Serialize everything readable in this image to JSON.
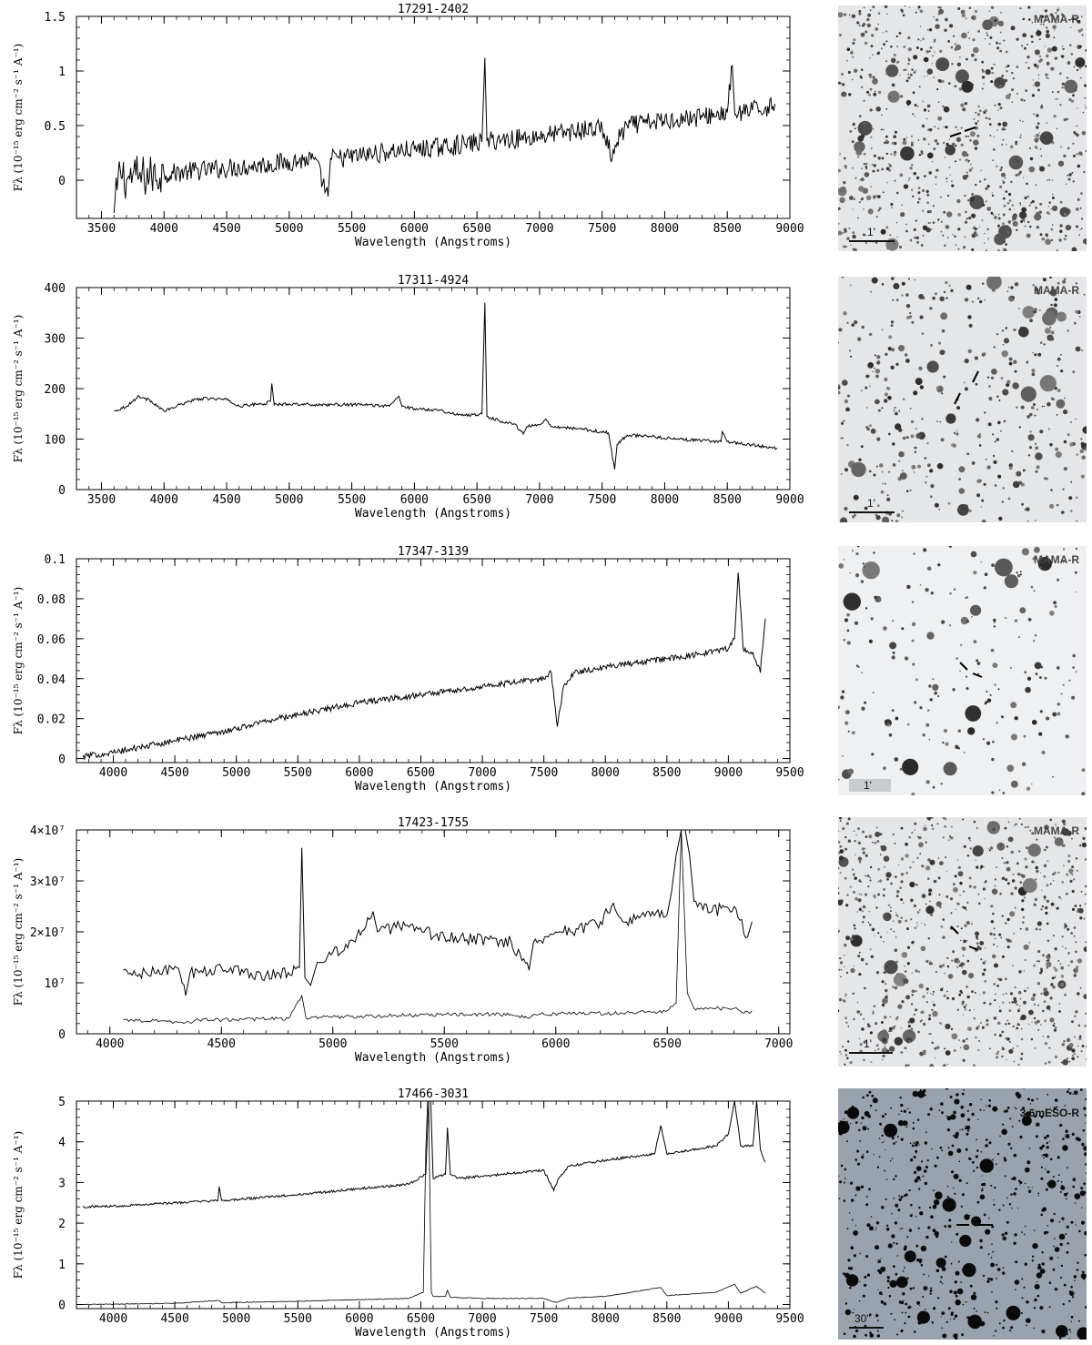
{
  "chart_data": [
    {
      "type": "line",
      "title": "17291-2402",
      "xlabel": "Wavelength (Angstroms)",
      "ylabel": "Fλ (10⁻¹⁵ erg cm⁻² s⁻¹ A⁻¹)",
      "xlim": [
        3300,
        9000
      ],
      "ylim": [
        -0.35,
        1.5
      ],
      "xticks": [
        3500,
        4000,
        4500,
        5000,
        5500,
        6000,
        6500,
        7000,
        7500,
        8000,
        8500,
        9000
      ],
      "yticks": [
        0,
        0.5,
        1,
        1.5
      ],
      "ytick_labels": [
        "0",
        "0.5",
        "1",
        "1.5"
      ],
      "series": [
        {
          "x": [
            3600,
            3650,
            3700,
            3750,
            3800,
            3900,
            4000,
            4200,
            4400,
            4600,
            4800,
            5000,
            5200,
            5310,
            5330,
            5400,
            5600,
            5800,
            6000,
            6200,
            6400,
            6540,
            6563,
            6580,
            6700,
            6900,
            7100,
            7300,
            7500,
            7580,
            7620,
            7700,
            7900,
            8100,
            8300,
            8500,
            8540,
            8560,
            8700,
            8800,
            8880
          ],
          "y": [
            -0.3,
            0.1,
            0.0,
            0.05,
            0.03,
            0.04,
            0.06,
            0.08,
            0.1,
            0.12,
            0.14,
            0.17,
            0.19,
            -0.15,
            0.2,
            0.2,
            0.23,
            0.26,
            0.28,
            0.3,
            0.33,
            0.35,
            1.12,
            0.36,
            0.37,
            0.39,
            0.42,
            0.45,
            0.48,
            0.2,
            0.35,
            0.5,
            0.53,
            0.56,
            0.58,
            0.62,
            1.05,
            0.6,
            0.64,
            0.66,
            0.7
          ]
        }
      ]
    },
    {
      "type": "line",
      "title": "17311-4924",
      "xlabel": "Wavelength (Angstroms)",
      "ylabel": "Fλ (10⁻¹⁵ erg cm⁻² s⁻¹ A⁻¹)",
      "xlim": [
        3300,
        9000
      ],
      "ylim": [
        0,
        400
      ],
      "xticks": [
        3500,
        4000,
        4500,
        5000,
        5500,
        6000,
        6500,
        7000,
        7500,
        8000,
        8500,
        9000
      ],
      "yticks": [
        0,
        100,
        200,
        300,
        400
      ],
      "ytick_labels": [
        "0",
        "100",
        "200",
        "300",
        "400"
      ],
      "series": [
        {
          "x": [
            3600,
            3700,
            3800,
            3900,
            4000,
            4100,
            4200,
            4300,
            4400,
            4500,
            4600,
            4700,
            4800,
            4850,
            4861,
            4880,
            5000,
            5200,
            5400,
            5600,
            5800,
            5876,
            5900,
            6000,
            6200,
            6300,
            6400,
            6500,
            6540,
            6563,
            6580,
            6700,
            6800,
            6870,
            6900,
            7000,
            7050,
            7100,
            7200,
            7400,
            7550,
            7600,
            7620,
            7700,
            7900,
            8100,
            8300,
            8450,
            8460,
            8500,
            8700,
            8900
          ],
          "y": [
            155,
            165,
            185,
            175,
            155,
            165,
            175,
            180,
            180,
            178,
            165,
            168,
            170,
            175,
            210,
            168,
            170,
            168,
            168,
            168,
            165,
            185,
            165,
            160,
            158,
            150,
            148,
            148,
            150,
            370,
            145,
            135,
            130,
            110,
            125,
            128,
            140,
            125,
            123,
            118,
            112,
            40,
            90,
            108,
            105,
            100,
            97,
            95,
            115,
            95,
            88,
            82
          ]
        }
      ]
    },
    {
      "type": "line",
      "title": "17347-3139",
      "xlabel": "Wavelength (Angstroms)",
      "ylabel": "Fλ (10⁻¹⁵ erg cm⁻² s⁻¹ A⁻¹)",
      "xlim": [
        3700,
        9500
      ],
      "ylim": [
        -0.002,
        0.1
      ],
      "xticks": [
        4000,
        4500,
        5000,
        5500,
        6000,
        6500,
        7000,
        7500,
        8000,
        8500,
        9000,
        9500
      ],
      "yticks": [
        0,
        0.02,
        0.04,
        0.06,
        0.08,
        0.1
      ],
      "ytick_labels": [
        "0",
        "0.02",
        "0.04",
        "0.06",
        "0.08",
        "0.1"
      ],
      "series": [
        {
          "x": [
            3750,
            4000,
            4250,
            4500,
            4750,
            5000,
            5250,
            5500,
            5750,
            6000,
            6250,
            6500,
            6750,
            7000,
            7250,
            7500,
            7560,
            7610,
            7660,
            7750,
            8000,
            8250,
            8500,
            8750,
            8900,
            9000,
            9050,
            9080,
            9120,
            9200,
            9260,
            9300
          ],
          "y": [
            0.001,
            0.003,
            0.006,
            0.009,
            0.012,
            0.015,
            0.019,
            0.022,
            0.025,
            0.028,
            0.03,
            0.032,
            0.034,
            0.036,
            0.038,
            0.04,
            0.043,
            0.016,
            0.036,
            0.043,
            0.046,
            0.048,
            0.05,
            0.052,
            0.054,
            0.055,
            0.06,
            0.093,
            0.055,
            0.053,
            0.043,
            0.07
          ]
        }
      ]
    },
    {
      "type": "line",
      "title": "17423-1755",
      "xlabel": "Wavelength (Angstroms)",
      "ylabel": "Fλ (10⁻¹⁵ erg cm⁻² s⁻¹ A⁻¹)",
      "xlim": [
        3850,
        7050
      ],
      "ylim": [
        0,
        40000000
      ],
      "xticks": [
        4000,
        4500,
        5000,
        5500,
        6000,
        6500,
        7000
      ],
      "yticks": [
        0,
        10000000,
        20000000,
        30000000,
        40000000
      ],
      "ytick_labels": [
        "0",
        "10⁷",
        "2×10⁷",
        "3×10⁷",
        "4×10⁷"
      ],
      "series": [
        {
          "x": [
            4060,
            4100,
            4200,
            4300,
            4340,
            4360,
            4400,
            4500,
            4600,
            4700,
            4800,
            4850,
            4861,
            4875,
            4900,
            4930,
            4960,
            5000,
            5100,
            5180,
            5200,
            5300,
            5400,
            5500,
            5600,
            5700,
            5800,
            5880,
            5900,
            5950,
            6000,
            6100,
            6200,
            6250,
            6300,
            6400,
            6500,
            6520,
            6540,
            6563,
            6580,
            6600,
            6620,
            6700,
            6800,
            6860,
            6880
          ],
          "y": [
            12500000,
            11500000,
            12000000,
            13000000,
            7500000,
            12000000,
            12000000,
            13000000,
            12000000,
            11500000,
            12000000,
            13000000,
            36500000,
            11000000,
            9500000,
            14000000,
            14000000,
            16000000,
            18000000,
            24000000,
            20000000,
            21000000,
            20000000,
            19000000,
            18500000,
            18500000,
            18000000,
            12500000,
            18000000,
            19000000,
            20000000,
            20500000,
            22000000,
            25000000,
            22000000,
            23000000,
            23500000,
            28000000,
            35000000,
            40000000,
            40000000,
            35000000,
            26000000,
            24000000,
            25000000,
            19000000,
            22000000
          ]
        },
        {
          "x": [
            4060,
            4200,
            4340,
            4400,
            4600,
            4800,
            4861,
            4880,
            4950,
            5200,
            5500,
            5800,
            5880,
            5900,
            6100,
            6300,
            6400,
            6500,
            6540,
            6563,
            6590,
            6620,
            6700,
            6800,
            6870,
            6880
          ],
          "y": [
            2700000,
            2600000,
            2200000,
            2700000,
            2800000,
            3000000,
            7500000,
            3000000,
            3200000,
            3500000,
            3800000,
            3800000,
            3000000,
            3800000,
            4000000,
            4000000,
            4200000,
            4500000,
            6000000,
            40000000,
            8000000,
            5000000,
            5000000,
            5000000,
            4000000,
            4500000
          ]
        }
      ]
    },
    {
      "type": "line",
      "title": "17466-3031",
      "xlabel": "Wavelength (Angstroms)",
      "ylabel": "Fλ (10⁻¹⁵ erg cm⁻² s⁻¹ A⁻¹)",
      "xlim": [
        3700,
        9500
      ],
      "ylim": [
        -0.1,
        5
      ],
      "xticks": [
        4000,
        4500,
        5000,
        5500,
        6000,
        6500,
        7000,
        7500,
        8000,
        8500,
        9000,
        9500
      ],
      "yticks": [
        0,
        1,
        2,
        3,
        4,
        5
      ],
      "ytick_labels": [
        "0",
        "1",
        "2",
        "3",
        "4",
        "5"
      ],
      "series": [
        {
          "x": [
            3750,
            4000,
            4500,
            4850,
            4861,
            4880,
            5000,
            5500,
            6000,
            6400,
            6540,
            6563,
            6580,
            6600,
            6700,
            6716,
            6740,
            6800,
            7000,
            7300,
            7500,
            7580,
            7620,
            7700,
            8000,
            8400,
            8450,
            8500,
            8700,
            8900,
            9000,
            9050,
            9100,
            9200,
            9230,
            9260,
            9300
          ],
          "y": [
            2.4,
            2.42,
            2.5,
            2.55,
            2.9,
            2.56,
            2.58,
            2.7,
            2.85,
            2.95,
            3.2,
            5.0,
            5.0,
            3.1,
            3.2,
            4.35,
            3.2,
            3.1,
            3.15,
            3.25,
            3.3,
            2.8,
            3.1,
            3.4,
            3.55,
            3.7,
            4.4,
            3.7,
            3.8,
            3.9,
            4.2,
            5.0,
            3.9,
            3.9,
            5.0,
            3.8,
            3.5
          ]
        },
        {
          "x": [
            3750,
            4000,
            4500,
            4861,
            4880,
            5000,
            5500,
            6000,
            6400,
            6520,
            6540,
            6555,
            6563,
            6575,
            6585,
            6600,
            6700,
            6716,
            6740,
            7000,
            7500,
            7600,
            7700,
            8000,
            8450,
            8500,
            8900,
            9050,
            9100,
            9230,
            9300
          ],
          "y": [
            0.0,
            0.01,
            0.03,
            0.1,
            0.04,
            0.05,
            0.08,
            0.12,
            0.15,
            0.3,
            3.8,
            5.0,
            5.0,
            2.4,
            0.3,
            0.2,
            0.2,
            0.35,
            0.18,
            0.15,
            0.15,
            0.05,
            0.16,
            0.2,
            0.42,
            0.22,
            0.3,
            0.5,
            0.28,
            0.45,
            0.28
          ]
        }
      ]
    }
  ],
  "finding_charts": [
    {
      "label": "MAMA-R",
      "scale": "1'"
    },
    {
      "label": "MAMA-R",
      "scale": "1'"
    },
    {
      "label": "MAMA-R",
      "scale": "1'"
    },
    {
      "label": "MAMA-R",
      "scale": "1'"
    },
    {
      "label": "3.6mESO-R",
      "scale": "30\""
    }
  ]
}
